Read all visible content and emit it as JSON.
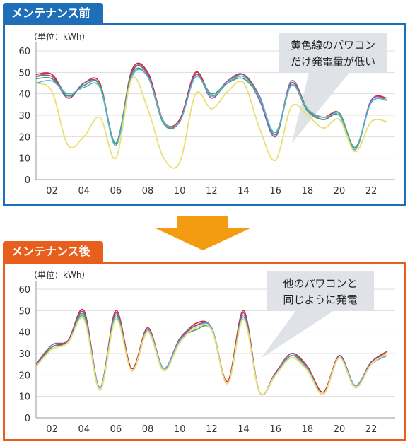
{
  "sections": {
    "before": {
      "title": "メンテナンス前",
      "callout": [
        "黄色線のパワコン",
        "だけ発電量が低い"
      ]
    },
    "after": {
      "title": "メンテナンス後",
      "callout": [
        "他のパワコンと",
        "同じように発電"
      ]
    }
  },
  "colors": {
    "before_accent": "#1e6fb8",
    "after_accent": "#e85e1c",
    "arrow": "#f39c12",
    "callout": "#dfe3e8",
    "grid": "#dddddd",
    "series": [
      "#7f7f7f",
      "#d62728",
      "#8c55a8",
      "#4aa36a",
      "#5ab0d6",
      "#e8e070"
    ]
  },
  "chart_data": [
    {
      "type": "line",
      "ylabel": "（単位：kWh）",
      "ylim": [
        0,
        60
      ],
      "yticks": [
        0,
        10,
        20,
        30,
        40,
        50,
        60
      ],
      "xlim": [
        1,
        23.5
      ],
      "xticks": [
        "02",
        "04",
        "06",
        "08",
        "10",
        "12",
        "14",
        "16",
        "18",
        "20",
        "22"
      ],
      "x": [
        1,
        2,
        3,
        4,
        5,
        6,
        7,
        8,
        9,
        10,
        11,
        12,
        13,
        14,
        15,
        16,
        17,
        18,
        19,
        20,
        21,
        22,
        23
      ],
      "series": [
        {
          "values": [
            48,
            49,
            39,
            44,
            44,
            17,
            50,
            50,
            27,
            27,
            50,
            39,
            45,
            49,
            39,
            21,
            46,
            33,
            28,
            31,
            15,
            36,
            37
          ]
        },
        {
          "values": [
            49,
            49,
            38,
            45,
            45,
            16,
            51,
            50,
            27,
            28,
            50,
            39,
            46,
            49,
            38,
            21,
            45,
            33,
            29,
            31,
            14,
            37,
            38
          ]
        },
        {
          "values": [
            48,
            48,
            38,
            45,
            44,
            17,
            50,
            49,
            26,
            27,
            49,
            38,
            46,
            49,
            37,
            20,
            45,
            32,
            28,
            30,
            14,
            37,
            37
          ]
        },
        {
          "values": [
            47,
            47,
            39,
            44,
            44,
            17,
            49,
            48,
            26,
            27,
            48,
            40,
            45,
            47,
            38,
            21,
            44,
            32,
            28,
            31,
            15,
            36,
            37
          ]
        },
        {
          "values": [
            45,
            46,
            40,
            43,
            43,
            16,
            48,
            48,
            27,
            27,
            48,
            39,
            45,
            48,
            38,
            22,
            44,
            33,
            29,
            30,
            14,
            36,
            37
          ]
        },
        {
          "values": [
            45,
            41,
            16,
            20,
            29,
            10,
            47,
            33,
            10,
            8,
            40,
            33,
            41,
            45,
            24,
            9,
            34,
            30,
            24,
            28,
            13,
            27,
            27
          ]
        }
      ]
    },
    {
      "type": "line",
      "ylabel": "（単位：kWh）",
      "ylim": [
        0,
        60
      ],
      "yticks": [
        0,
        10,
        20,
        30,
        40,
        50,
        60
      ],
      "xlim": [
        1,
        23.5
      ],
      "xticks": [
        "02",
        "04",
        "06",
        "08",
        "10",
        "12",
        "14",
        "16",
        "18",
        "20",
        "22"
      ],
      "x": [
        1,
        2,
        3,
        4,
        5,
        6,
        7,
        8,
        9,
        10,
        11,
        12,
        13,
        14,
        15,
        16,
        17,
        18,
        19,
        20,
        21,
        22,
        23
      ],
      "series": [
        {
          "values": [
            25,
            33,
            36,
            49,
            14,
            49,
            22,
            41,
            23,
            36,
            43,
            42,
            16,
            48,
            12,
            20,
            29,
            23,
            11,
            29,
            15,
            25,
            30
          ]
        },
        {
          "values": [
            25,
            33,
            36,
            50,
            14,
            50,
            23,
            42,
            23,
            36,
            44,
            42,
            17,
            50,
            12,
            21,
            30,
            24,
            12,
            29,
            15,
            26,
            31
          ]
        },
        {
          "values": [
            25,
            34,
            36,
            49,
            14,
            49,
            22,
            41,
            23,
            37,
            43,
            42,
            16,
            49,
            12,
            21,
            30,
            23,
            11,
            29,
            15,
            26,
            30
          ]
        },
        {
          "values": [
            24,
            33,
            35,
            48,
            13,
            48,
            22,
            40,
            22,
            36,
            41,
            41,
            16,
            47,
            12,
            20,
            29,
            23,
            11,
            28,
            14,
            25,
            30
          ]
        },
        {
          "values": [
            24,
            32,
            35,
            47,
            14,
            47,
            22,
            41,
            23,
            36,
            42,
            42,
            16,
            47,
            12,
            20,
            28,
            23,
            11,
            28,
            15,
            25,
            29
          ]
        },
        {
          "values": [
            24,
            32,
            35,
            46,
            13,
            46,
            22,
            40,
            22,
            35,
            42,
            41,
            16,
            46,
            12,
            20,
            28,
            22,
            11,
            28,
            14,
            25,
            30
          ]
        }
      ]
    }
  ]
}
